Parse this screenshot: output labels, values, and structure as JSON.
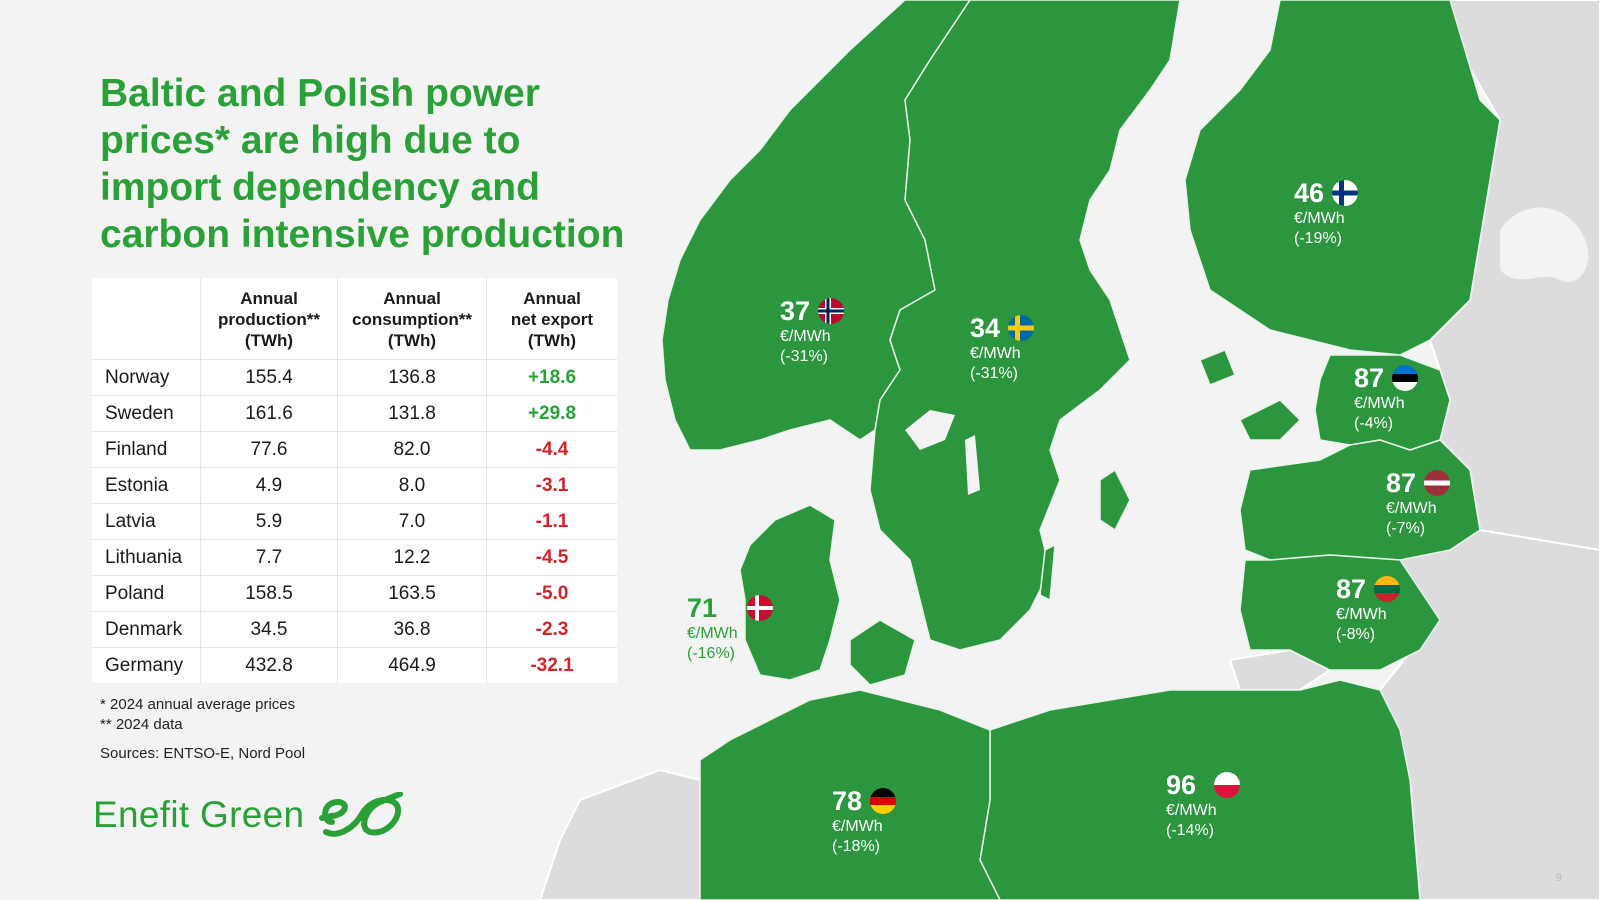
{
  "title": [
    "Baltic and Polish power",
    "prices* are high due to",
    "import dependency and",
    "carbon intensive production"
  ],
  "table": {
    "headers": [
      "",
      "Annual production** (TWh)",
      "Annual consumption** (TWh)",
      "Annual net export (TWh)"
    ],
    "header_lines": [
      [],
      [
        "Annual",
        "production**",
        "(TWh)"
      ],
      [
        "Annual",
        "consumption**",
        "(TWh)"
      ],
      [
        "Annual",
        "net export",
        "(TWh)"
      ]
    ],
    "rows": [
      {
        "country": "Norway",
        "production": "155.4",
        "consumption": "136.8",
        "net_export": "+18.6",
        "sign": "pos"
      },
      {
        "country": "Sweden",
        "production": "161.6",
        "consumption": "131.8",
        "net_export": "+29.8",
        "sign": "pos"
      },
      {
        "country": "Finland",
        "production": "77.6",
        "consumption": "82.0",
        "net_export": "-4.4",
        "sign": "neg"
      },
      {
        "country": "Estonia",
        "production": "4.9",
        "consumption": "8.0",
        "net_export": "-3.1",
        "sign": "neg"
      },
      {
        "country": "Latvia",
        "production": "5.9",
        "consumption": "7.0",
        "net_export": "-1.1",
        "sign": "neg"
      },
      {
        "country": "Lithuania",
        "production": "7.7",
        "consumption": "12.2",
        "net_export": "-4.5",
        "sign": "neg"
      },
      {
        "country": "Poland",
        "production": "158.5",
        "consumption": "163.5",
        "net_export": "-5.0",
        "sign": "neg"
      },
      {
        "country": "Denmark",
        "production": "34.5",
        "consumption": "36.8",
        "net_export": "-2.3",
        "sign": "neg"
      },
      {
        "country": "Germany",
        "production": "432.8",
        "consumption": "464.9",
        "net_export": "-32.1",
        "sign": "neg"
      }
    ]
  },
  "footnotes": [
    "*  2024 annual average prices",
    "** 2024 data"
  ],
  "sources": "Sources: ENTSO-E, Nord Pool",
  "logo_text": "Enefit Green",
  "page_number": "9",
  "colors": {
    "accent_green": "#2aa137",
    "land_green": "#2b963d",
    "negative_red": "#d2232a",
    "other_land": "#dcdcde",
    "sea": "#f3f3f4"
  },
  "map_labels": {
    "norway": {
      "price": "37",
      "unit": "€/MWh",
      "change": "(-31%)",
      "flag": "flag-norway-icon"
    },
    "sweden": {
      "price": "34",
      "unit": "€/MWh",
      "change": "(-31%)",
      "flag": "flag-sweden-icon"
    },
    "finland": {
      "price": "46",
      "unit": "€/MWh",
      "change": "(-19%)",
      "flag": "flag-finland-icon"
    },
    "estonia": {
      "price": "87",
      "unit": "€/MWh",
      "change": "(-4%)",
      "flag": "flag-estonia-icon"
    },
    "latvia": {
      "price": "87",
      "unit": "€/MWh",
      "change": "(-7%)",
      "flag": "flag-latvia-icon"
    },
    "lithuania": {
      "price": "87",
      "unit": "€/MWh",
      "change": "(-8%)",
      "flag": "flag-lithuania-icon"
    },
    "denmark": {
      "price": "71",
      "unit": "€/MWh",
      "change": "(-16%)",
      "flag": "flag-denmark-icon"
    },
    "germany": {
      "price": "78",
      "unit": "€/MWh",
      "change": "(-18%)",
      "flag": "flag-germany-icon"
    },
    "poland": {
      "price": "96",
      "unit": "€/MWh",
      "change": "(-14%)",
      "flag": "flag-poland-icon"
    }
  }
}
